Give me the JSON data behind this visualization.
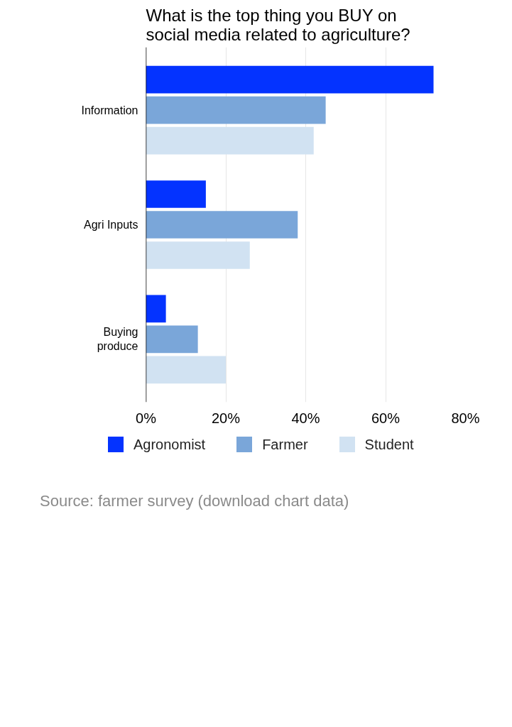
{
  "chart_data": {
    "type": "bar",
    "orientation": "horizontal",
    "title": "What is the top thing you BUY on social media related to agriculture?",
    "categories": [
      "Information",
      "Agri Inputs",
      "Buying produce"
    ],
    "series": [
      {
        "name": "Agronomist",
        "color": "#0433ff",
        "values": [
          72,
          15,
          5
        ]
      },
      {
        "name": "Farmer",
        "color": "#7aa6d9",
        "values": [
          45,
          38,
          13
        ]
      },
      {
        "name": "Student",
        "color": "#d1e2f2",
        "values": [
          42,
          26,
          20
        ]
      }
    ],
    "xlim": [
      0,
      80
    ],
    "xticks": [
      {
        "value": 0,
        "label": "0%"
      },
      {
        "value": 20,
        "label": "20%"
      },
      {
        "value": 40,
        "label": "40%"
      },
      {
        "value": 60,
        "label": "60%"
      },
      {
        "value": 80,
        "label": "80%"
      }
    ],
    "grid": "x",
    "legend": "bottom",
    "annotations": [
      "Source: farmer survey (download chart data)"
    ]
  }
}
